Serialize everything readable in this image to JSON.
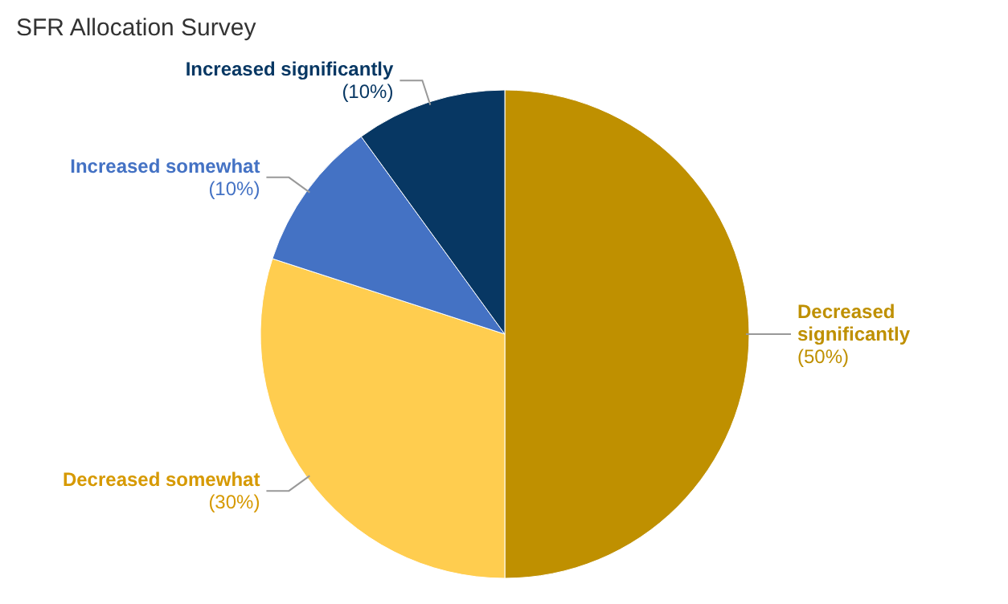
{
  "chart_data": {
    "type": "pie",
    "title": "SFR Allocation Survey",
    "categories": [
      "Decreased significantly",
      "Decreased somewhat",
      "Increased somewhat",
      "Increased significantly"
    ],
    "values": [
      50,
      30,
      10,
      10
    ],
    "colors": [
      "#bf9000",
      "#ffcd4f",
      "#4472c4",
      "#073763"
    ],
    "value_labels": [
      "(50%)",
      "(30%)",
      "(10%)",
      "(10%)"
    ],
    "legend": false
  }
}
